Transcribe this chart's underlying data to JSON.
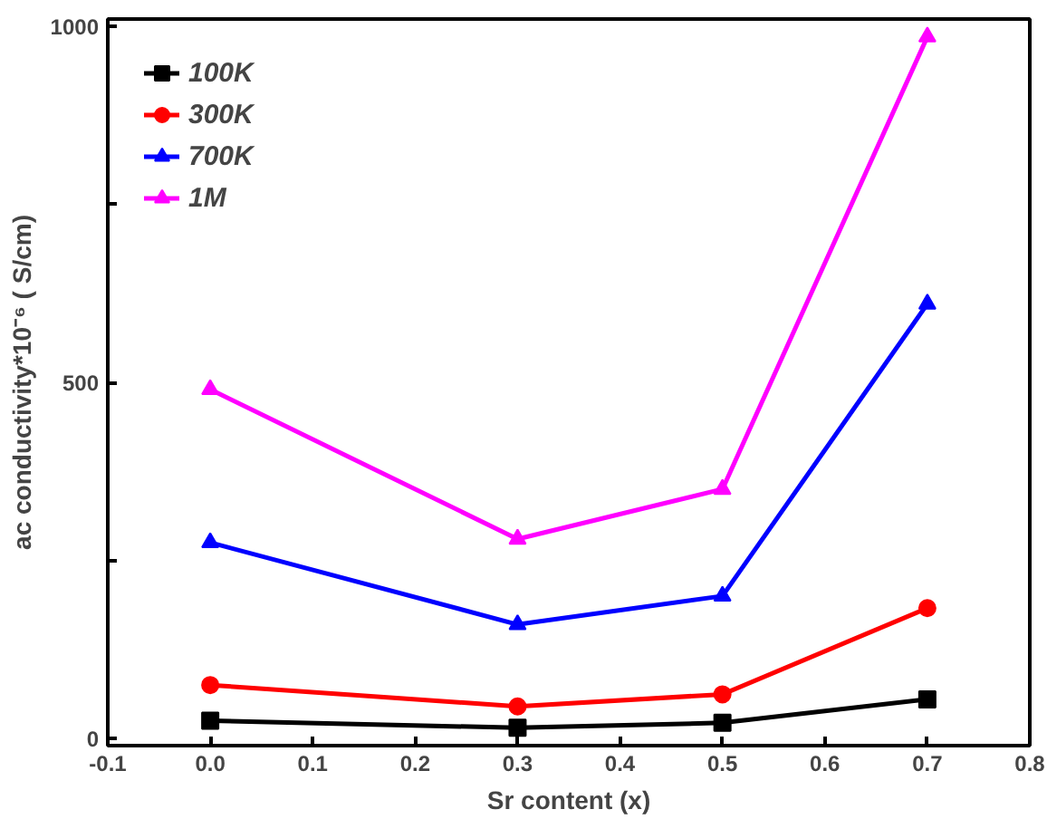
{
  "chart_data": {
    "type": "line",
    "xlabel": "Sr content (x)",
    "ylabel": "ac conductivity*10⁻⁶ ( S/cm)",
    "x": [
      0.0,
      0.3,
      0.5,
      0.7
    ],
    "series": [
      {
        "name": "100K",
        "color": "#000000",
        "marker": "square",
        "values": [
          25,
          15,
          22,
          55
        ]
      },
      {
        "name": "300K",
        "color": "#ff0000",
        "marker": "circle",
        "values": [
          75,
          45,
          62,
          183
        ]
      },
      {
        "name": "700K",
        "color": "#0000ff",
        "marker": "triangle",
        "values": [
          275,
          160,
          200,
          610
        ]
      },
      {
        "name": "1M",
        "color": "#ff00ff",
        "marker": "triangle",
        "values": [
          490,
          280,
          350,
          985
        ]
      }
    ],
    "xlim": [
      -0.1,
      0.8
    ],
    "xticks": [
      -0.1,
      {
        "value": 0,
        "label": "0.0"
      },
      0.1,
      0.2,
      0.3,
      0.4,
      0.5,
      0.6,
      0.7,
      0.8
    ],
    "ylim": [
      -10,
      1010
    ],
    "yticks": [
      0,
      {
        "value": 250,
        "label": null
      },
      500,
      {
        "value": 750,
        "label": null
      },
      1000
    ],
    "grid": false,
    "legend": "top left",
    "line_style": "solid"
  }
}
